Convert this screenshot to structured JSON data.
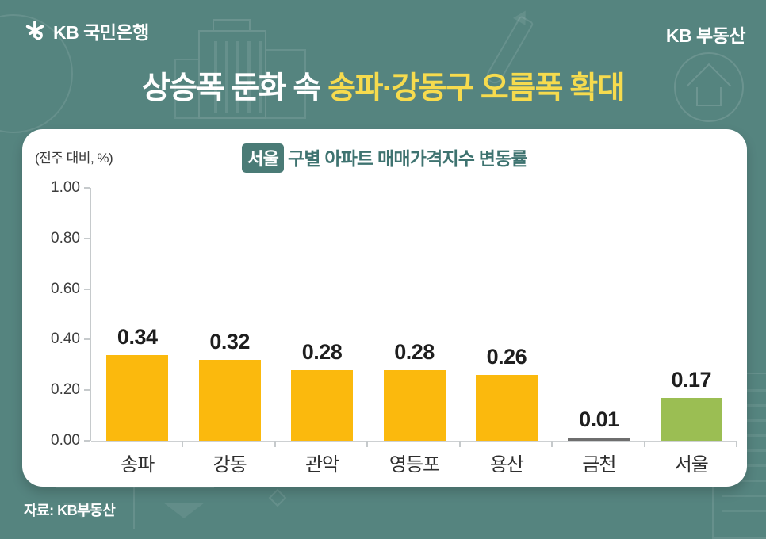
{
  "header": {
    "bank_logo": "KB 국민은행",
    "brand": "KB 부동산"
  },
  "title": {
    "white": "상승폭 둔화 속 ",
    "yellow": "송파·강동구 오름폭 확대"
  },
  "chart_data": {
    "type": "bar",
    "title_full": "서울 구별 아파트 매매가격지수 변동률",
    "title_badge": "서울",
    "title_rest": "구별 아파트 매매가격지수 변동률",
    "unit_label": "(전주 대비, %)",
    "categories": [
      "송파",
      "강동",
      "관악",
      "영등포",
      "용산",
      "금천",
      "서울"
    ],
    "values": [
      0.34,
      0.32,
      0.28,
      0.28,
      0.26,
      0.01,
      0.17
    ],
    "value_labels": [
      "0.34",
      "0.32",
      "0.28",
      "0.28",
      "0.26",
      "0.01",
      "0.17"
    ],
    "bar_colors": [
      "#FBB90D",
      "#FBB90D",
      "#FBB90D",
      "#FBB90D",
      "#FBB90D",
      "#6E6E6E",
      "#9BBE53"
    ],
    "ylim": [
      0,
      1.0
    ],
    "yticks": [
      "1.00",
      "0.80",
      "0.60",
      "0.40",
      "0.20",
      "0.00"
    ],
    "grid": false,
    "legend": false
  },
  "source": "자료: KB부동산",
  "colors": {
    "background": "#55847F",
    "accent_yellow": "#F6DB4E",
    "bar_yellow": "#FBB90D",
    "bar_green": "#9BBE53",
    "bar_gray": "#6E6E6E",
    "badge_teal": "#4A7B76",
    "chart_title_teal": "#3E7370"
  }
}
